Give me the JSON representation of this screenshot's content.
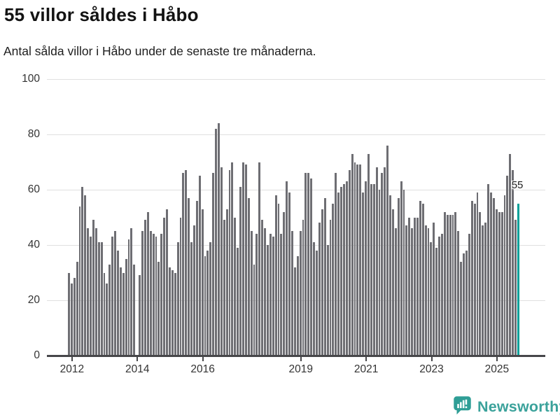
{
  "header": {
    "title": "55 villor såldes i Håbo",
    "subtitle": "Antal sålda villor i Håbo under de senaste tre månaderna."
  },
  "footer": {
    "brand_name": "Newsworthy"
  },
  "colors": {
    "bar": "#6e6e73",
    "highlight": "#00a099",
    "axis": "#47474a",
    "gridline": "#e0e0e0",
    "tick_text": "#333333",
    "brand": "#3ba29b"
  },
  "chart_data": {
    "type": "bar",
    "title": "55 villor såldes i Håbo",
    "subtitle": "Antal sålda villor i Håbo under de senaste tre månaderna.",
    "xlabel": "",
    "ylabel": "",
    "ylim": [
      0,
      100
    ],
    "grid": true,
    "y_ticks": [
      0,
      20,
      40,
      60,
      80,
      100
    ],
    "x_ticks": [
      {
        "label": "2012",
        "month_index": 1
      },
      {
        "label": "2014",
        "month_index": 25
      },
      {
        "label": "2016",
        "month_index": 49
      },
      {
        "label": "2019",
        "month_index": 85
      },
      {
        "label": "2021",
        "month_index": 109
      },
      {
        "label": "2023",
        "month_index": 133
      },
      {
        "label": "2025",
        "month_index": 157
      }
    ],
    "values": [
      30,
      26,
      28,
      34,
      54,
      61,
      58,
      46,
      43,
      49,
      46,
      41,
      41,
      30,
      26,
      33,
      43,
      45,
      38,
      32,
      30,
      35,
      42,
      46,
      33,
      0,
      29,
      45,
      49,
      52,
      45,
      44,
      43,
      34,
      44,
      50,
      53,
      32,
      31,
      30,
      41,
      50,
      66,
      67,
      57,
      41,
      47,
      56,
      65,
      53,
      36,
      38,
      41,
      66,
      82,
      84,
      68,
      49,
      53,
      67,
      70,
      50,
      39,
      61,
      70,
      69,
      57,
      45,
      33,
      44,
      70,
      49,
      46,
      40,
      44,
      43,
      58,
      55,
      44,
      52,
      63,
      59,
      45,
      32,
      36,
      45,
      49,
      66,
      66,
      64,
      41,
      38,
      48,
      53,
      57,
      40,
      49,
      55,
      66,
      59,
      61,
      62,
      63,
      67,
      73,
      70,
      69,
      69,
      59,
      63,
      73,
      62,
      62,
      68,
      60,
      66,
      68,
      76,
      58,
      53,
      46,
      57,
      63,
      60,
      47,
      50,
      46,
      50,
      50,
      56,
      55,
      47,
      46,
      41,
      48,
      39,
      43,
      44,
      52,
      51,
      51,
      51,
      52,
      45,
      34,
      37,
      38,
      44,
      56,
      55,
      59,
      52,
      47,
      48,
      62,
      59,
      57,
      53,
      52,
      52,
      58,
      65,
      73,
      67,
      49,
      55
    ],
    "highlight": {
      "index": 165,
      "value": 55,
      "label": "55"
    }
  }
}
